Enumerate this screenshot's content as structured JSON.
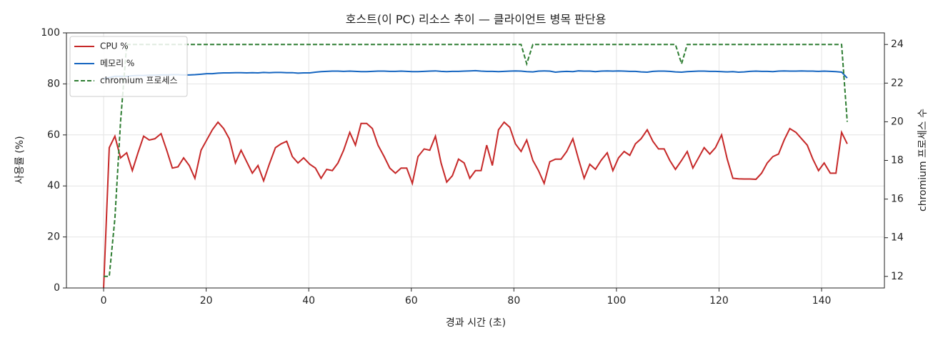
{
  "chart_data": {
    "type": "line",
    "title": "호스트(이 PC) 리소스 추이 — 클라이언트 병목 판단용",
    "xlabel": "경과 시간 (초)",
    "ylabel": "사용률 (%)",
    "y2label": "chromium 프로세스 수",
    "x": [
      0,
      1.1,
      2.2,
      3.3,
      4.5,
      5.6,
      6.7,
      7.8,
      8.9,
      10.0,
      11.2,
      12.3,
      13.4,
      14.5,
      15.6,
      16.7,
      17.8,
      19.0,
      20.1,
      21.2,
      22.3,
      23.4,
      24.5,
      25.7,
      26.8,
      27.9,
      29.0,
      30.1,
      31.2,
      32.3,
      33.5,
      34.6,
      35.7,
      36.8,
      37.9,
      39.0,
      40.2,
      41.3,
      42.4,
      43.5,
      44.6,
      45.7,
      46.8,
      48.0,
      49.1,
      50.2,
      51.3,
      52.4,
      53.5,
      54.7,
      55.8,
      56.9,
      58.0,
      59.1,
      60.2,
      61.3,
      62.5,
      63.6,
      64.7,
      65.8,
      66.9,
      68.0,
      69.2,
      70.3,
      71.4,
      72.5,
      73.6,
      74.7,
      75.8,
      77.0,
      78.1,
      79.2,
      80.3,
      81.4,
      82.5,
      83.7,
      84.8,
      85.9,
      87.0,
      88.1,
      89.2,
      90.3,
      91.5,
      92.6,
      93.7,
      94.8,
      95.9,
      97.0,
      98.2,
      99.3,
      100.4,
      101.5,
      102.6,
      103.7,
      104.8,
      106.0,
      107.1,
      108.2,
      109.3,
      110.4,
      111.5,
      112.7,
      113.8,
      114.9,
      116.0,
      117.1,
      118.2,
      119.3,
      120.5,
      121.6,
      122.7,
      123.8,
      124.9,
      126.0,
      127.2,
      128.3,
      129.4,
      130.5,
      131.6,
      132.7,
      133.8,
      135.0,
      136.1,
      137.2,
      138.3,
      139.4,
      140.5,
      141.7,
      142.8,
      143.9,
      145.0
    ],
    "series": [
      {
        "name": "CPU %",
        "color": "#c62828",
        "linestyle": "solid",
        "axis": "y",
        "values": [
          0,
          55,
          59.5,
          51,
          53,
          46,
          53,
          59.5,
          58,
          58.5,
          60.5,
          54,
          47,
          47.5,
          51,
          48,
          43,
          54,
          58,
          62,
          65,
          62.5,
          58.5,
          49,
          54,
          49.5,
          45,
          48,
          42,
          48.5,
          55,
          56.5,
          57.5,
          51.5,
          49,
          51,
          48.5,
          47,
          43,
          46.5,
          46,
          49,
          54,
          61,
          56,
          64.5,
          64.5,
          62.5,
          56,
          51.5,
          47,
          45,
          47,
          47,
          41,
          51.5,
          54.5,
          54,
          59.5,
          49,
          41.5,
          44,
          50.5,
          49,
          43,
          46,
          46,
          56,
          48,
          62,
          65,
          63,
          56.5,
          53.5,
          58,
          50,
          46,
          41,
          49.5,
          50.5,
          50.5,
          53.5,
          58.5,
          50.5,
          43,
          48.5,
          46.5,
          50,
          53,
          46,
          51,
          53.5,
          52,
          56.5,
          58.5,
          62,
          57.5,
          54.5,
          54.5,
          50,
          46.5,
          50,
          53.5,
          47,
          51,
          55,
          52.5,
          55,
          60,
          50.5,
          43,
          42.8,
          42.7,
          42.7,
          42.6,
          45,
          49,
          51.5,
          52.5,
          58,
          62.5,
          61,
          58.5,
          56,
          50.5,
          46,
          49,
          45,
          45,
          61,
          56.5
        ]
      },
      {
        "name": "메모리 %",
        "color": "#1565c0",
        "linestyle": "solid",
        "axis": "y",
        "values": [
          82,
          82.5,
          83,
          83,
          83,
          83.2,
          83.3,
          83.3,
          83.4,
          83.4,
          83.5,
          83.5,
          83.6,
          83.6,
          83.5,
          83.5,
          83.6,
          83.8,
          84,
          84,
          84.2,
          84.3,
          84.3,
          84.4,
          84.4,
          84.3,
          84.4,
          84.3,
          84.5,
          84.4,
          84.5,
          84.5,
          84.4,
          84.4,
          84.2,
          84.3,
          84.3,
          84.6,
          84.8,
          84.9,
          85,
          85,
          84.9,
          85,
          84.9,
          84.8,
          84.8,
          84.9,
          85,
          85,
          84.9,
          84.9,
          85,
          84.9,
          84.8,
          84.8,
          84.9,
          85,
          85.1,
          84.9,
          84.8,
          84.9,
          84.9,
          85,
          85.1,
          85.2,
          85,
          84.9,
          84.9,
          84.8,
          84.9,
          85,
          85.1,
          85,
          84.8,
          84.7,
          85,
          85.1,
          85,
          84.6,
          84.8,
          84.9,
          84.8,
          85.1,
          85,
          85,
          84.8,
          85,
          85.1,
          85,
          85.1,
          85,
          84.9,
          84.9,
          84.7,
          84.6,
          84.9,
          85,
          85,
          84.9,
          84.7,
          84.6,
          84.8,
          84.9,
          85,
          85,
          84.9,
          84.9,
          84.8,
          84.7,
          84.8,
          84.6,
          84.7,
          84.9,
          85,
          84.9,
          84.9,
          84.8,
          85,
          85.1,
          85,
          85,
          85.1,
          85,
          85,
          84.9,
          85,
          84.9,
          84.8,
          84.6,
          82.3
        ]
      },
      {
        "name": "chromium 프로세스",
        "color": "#2e7d32",
        "linestyle": "dashed",
        "axis": "y2",
        "values": [
          12,
          12,
          15,
          20,
          24,
          24,
          24,
          24,
          24,
          24,
          24,
          24,
          24,
          24,
          24,
          24,
          24,
          24,
          24,
          24,
          24,
          24,
          24,
          24,
          24,
          24,
          24,
          24,
          24,
          24,
          24,
          24,
          24,
          24,
          24,
          24,
          24,
          24,
          24,
          24,
          24,
          24,
          24,
          24,
          24,
          24,
          24,
          24,
          24,
          24,
          24,
          24,
          24,
          24,
          24,
          24,
          24,
          24,
          24,
          24,
          24,
          24,
          24,
          24,
          24,
          24,
          24,
          24,
          24,
          24,
          24,
          24,
          24,
          24,
          23,
          24,
          24,
          24,
          24,
          24,
          24,
          24,
          24,
          24,
          24,
          24,
          24,
          24,
          24,
          24,
          24,
          24,
          24,
          24,
          24,
          24,
          24,
          24,
          24,
          24,
          24,
          23,
          24,
          24,
          24,
          24,
          24,
          24,
          24,
          24,
          24,
          24,
          24,
          24,
          24,
          24,
          24,
          24,
          24,
          24,
          24,
          24,
          24,
          24,
          24,
          24,
          24,
          24,
          24,
          24,
          20
        ]
      }
    ],
    "xlim": [
      -7.25,
      152.25
    ],
    "xticks": [
      0,
      20,
      40,
      60,
      80,
      100,
      120,
      140
    ],
    "ylim": [
      0,
      100
    ],
    "yticks": [
      0,
      20,
      40,
      60,
      80,
      100
    ],
    "y2lim": [
      11.4,
      24.6
    ],
    "y2ticks": [
      12,
      14,
      16,
      18,
      20,
      22,
      24
    ],
    "grid": true,
    "legend": "upper left"
  }
}
